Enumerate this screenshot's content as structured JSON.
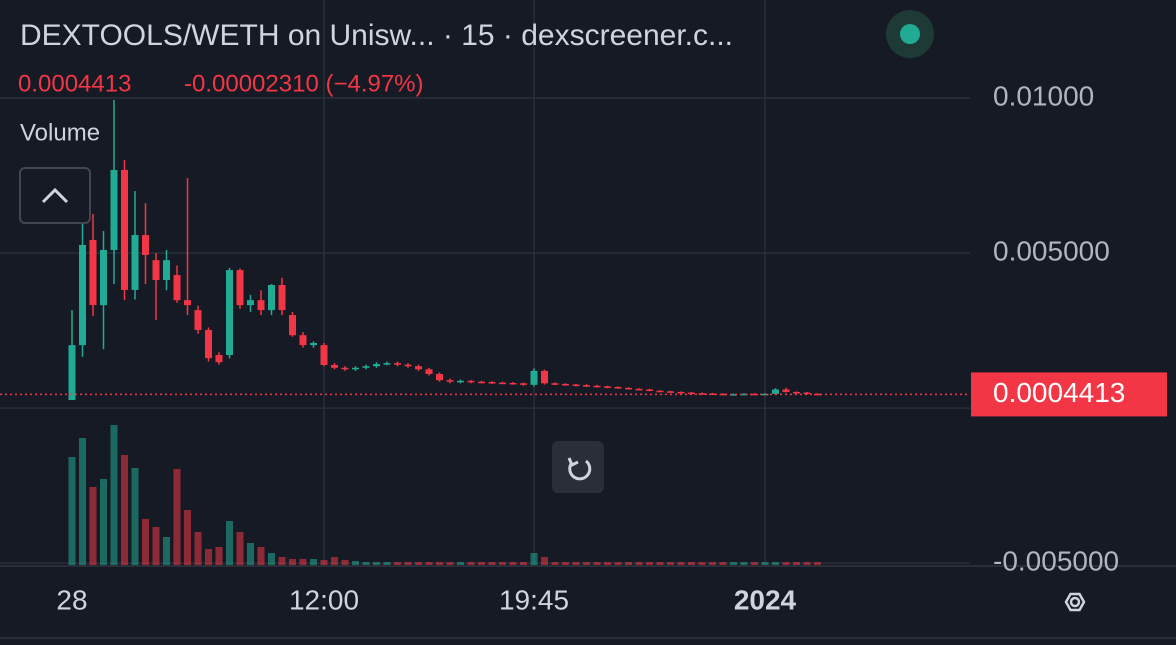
{
  "chart_data": {
    "type": "candlestick",
    "title": "DEXTOOLS/WETH on Unisw... · 15 · dexscreener.c...",
    "last_price": 0.0004413,
    "change": "-0.00002310 (−4.97%)",
    "volume_label": "Volume",
    "up_color": "#22ab94",
    "down_color": "#f23645",
    "categories": [
      "28",
      null,
      null,
      null,
      null,
      null,
      null,
      null,
      null,
      null,
      null,
      null,
      null,
      null,
      null,
      null,
      null,
      null,
      null,
      null,
      null,
      null,
      null,
      null,
      "12:00",
      null,
      null,
      null,
      null,
      null,
      null,
      null,
      null,
      null,
      null,
      null,
      null,
      null,
      null,
      null,
      null,
      null,
      null,
      null,
      "19:45",
      null,
      null,
      null,
      null,
      null,
      null,
      null,
      null,
      null,
      null,
      null,
      null,
      null,
      null,
      null,
      null,
      null,
      null,
      null,
      null,
      null,
      "2024",
      null,
      null,
      null,
      null,
      null
    ],
    "open": [
      0.00026,
      0.00203,
      0.00542,
      0.00332,
      0.0051,
      0.00768,
      0.00381,
      0.00558,
      0.00477,
      0.00413,
      0.00429,
      0.00348,
      0.00316,
      0.00252,
      0.00171,
      0.00171,
      0.00445,
      0.00332,
      0.00348,
      0.00316,
      0.00397,
      0.003,
      0.00235,
      0.00203,
      0.00203,
      0.00139,
      0.0013,
      0.00126,
      0.0013,
      0.00135,
      0.00142,
      0.00145,
      0.0014,
      0.00135,
      0.00125,
      0.0011,
      0.0009,
      0.00085,
      0.00088,
      0.00085,
      0.00084,
      0.00082,
      0.00081,
      0.0008,
      0.00075,
      0.0012,
      0.0008,
      0.00078,
      0.00076,
      0.00074,
      0.00072,
      0.0007,
      0.00068,
      0.00065,
      0.00062,
      0.0006,
      0.00056,
      0.00054,
      0.00052,
      0.0005,
      0.00048,
      0.00047,
      0.00046,
      0.00045,
      0.00045,
      0.00046,
      0.00045,
      0.00046,
      0.0006,
      0.00052,
      0.0005,
      0.00046
    ],
    "high": [
      0.00316,
      0.00597,
      0.00626,
      0.00571,
      0.00994,
      0.008,
      0.007,
      0.00661,
      0.005,
      0.0051,
      0.0046,
      0.00742,
      0.0033,
      0.0026,
      0.0018,
      0.00452,
      0.0045,
      0.00365,
      0.0038,
      0.004,
      0.0042,
      0.0031,
      0.00245,
      0.00215,
      0.0021,
      0.00145,
      0.00135,
      0.00135,
      0.0014,
      0.00148,
      0.0015,
      0.0015,
      0.00145,
      0.0014,
      0.0013,
      0.00115,
      0.00095,
      0.00092,
      0.0009,
      0.00088,
      0.00087,
      0.00085,
      0.00084,
      0.00082,
      0.00128,
      0.00124,
      0.00083,
      0.0008,
      0.00078,
      0.00077,
      0.00075,
      0.00072,
      0.0007,
      0.00067,
      0.00064,
      0.00062,
      0.00058,
      0.00056,
      0.00054,
      0.00052,
      0.0005,
      0.00049,
      0.00048,
      0.00047,
      0.00048,
      0.00048,
      0.00048,
      0.00064,
      0.00066,
      0.00054,
      0.00052,
      0.00048
    ],
    "low": [
      0.00026,
      0.00165,
      0.00297,
      0.0019,
      0.004,
      0.00348,
      0.0035,
      0.004,
      0.00284,
      0.0038,
      0.0034,
      0.003,
      0.0024,
      0.0015,
      0.0014,
      0.0016,
      0.0032,
      0.0031,
      0.003,
      0.003,
      0.003,
      0.0023,
      0.00195,
      0.00195,
      0.00135,
      0.00125,
      0.0012,
      0.0012,
      0.00125,
      0.0013,
      0.00138,
      0.00135,
      0.0013,
      0.0012,
      0.00105,
      0.00085,
      0.0008,
      0.0008,
      0.0008,
      0.0008,
      0.00078,
      0.00078,
      0.00076,
      0.00072,
      0.0007,
      0.00076,
      0.00074,
      0.00072,
      0.0007,
      0.00068,
      0.00066,
      0.00064,
      0.00062,
      0.0006,
      0.00058,
      0.00054,
      0.00052,
      0.0005,
      0.00048,
      0.00046,
      0.00045,
      0.00044,
      0.00043,
      0.00043,
      0.00044,
      0.00043,
      0.00044,
      0.00044,
      0.0005,
      0.00048,
      0.00044,
      0.00043
    ],
    "close": [
      0.00203,
      0.00526,
      0.00332,
      0.0051,
      0.00768,
      0.00381,
      0.00558,
      0.00494,
      0.00413,
      0.00477,
      0.00348,
      0.00332,
      0.00252,
      0.00161,
      0.00148,
      0.00445,
      0.00332,
      0.00348,
      0.00316,
      0.00397,
      0.00316,
      0.00235,
      0.00203,
      0.0021,
      0.00139,
      0.0013,
      0.00126,
      0.0013,
      0.00135,
      0.00142,
      0.00145,
      0.0014,
      0.00135,
      0.00125,
      0.0011,
      0.0009,
      0.00085,
      0.00088,
      0.00085,
      0.00084,
      0.00082,
      0.00081,
      0.0008,
      0.00075,
      0.0012,
      0.0008,
      0.00078,
      0.00076,
      0.00074,
      0.00072,
      0.0007,
      0.00068,
      0.00065,
      0.00062,
      0.0006,
      0.00056,
      0.00054,
      0.00052,
      0.0005,
      0.00048,
      0.00047,
      0.00046,
      0.00045,
      0.00045,
      0.00046,
      0.00045,
      0.00046,
      0.0006,
      0.00052,
      0.0005,
      0.00046,
      0.0004413
    ],
    "volume": [
      108,
      127,
      78,
      86,
      140,
      110,
      97,
      46,
      38,
      28,
      96,
      55,
      33,
      16,
      18,
      44,
      33,
      22,
      18,
      12,
      8,
      6,
      6,
      6,
      5,
      8,
      5,
      4,
      3,
      3,
      3,
      3,
      3,
      3,
      3,
      3,
      3,
      3,
      3,
      3,
      3,
      3,
      3,
      3,
      12,
      8,
      3,
      3,
      3,
      3,
      3,
      3,
      3,
      3,
      3,
      3,
      3,
      3,
      3,
      3,
      3,
      3,
      3,
      3,
      3,
      3,
      3,
      3,
      3,
      3,
      3,
      3
    ],
    "ylim": [
      -0.00506,
      0.01316
    ],
    "yticks": [
      {
        "value": -0.005,
        "label": "-0.005000"
      },
      {
        "value": 0,
        "label": "0.000000"
      },
      {
        "value": 0.005,
        "label": "0.005000"
      },
      {
        "value": 0.01,
        "label": "0.01000"
      }
    ],
    "grid": true
  }
}
